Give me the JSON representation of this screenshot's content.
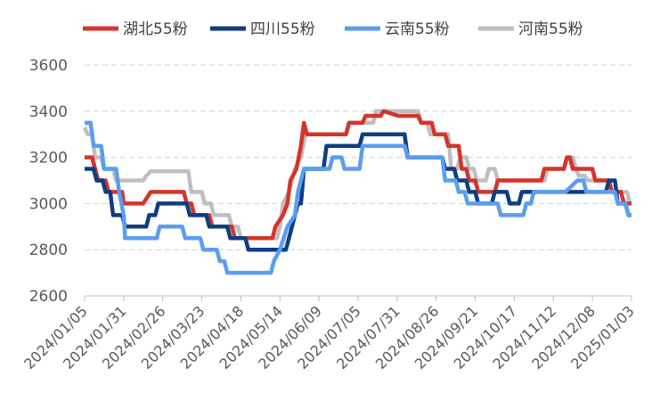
{
  "chart_data": {
    "type": "line",
    "title": "",
    "xlabel": "",
    "ylabel": "",
    "ylim": [
      2600,
      3600
    ],
    "yticks": [
      2600,
      2800,
      3000,
      3200,
      3400,
      3600
    ],
    "xlim": [
      "2024/01/05",
      "2025/01/03"
    ],
    "xticks": [
      "2024/01/05",
      "2024/01/31",
      "2024/02/26",
      "2024/03/23",
      "2024/04/18",
      "2024/05/14",
      "2024/06/09",
      "2024/07/05",
      "2024/07/31",
      "2024/08/26",
      "2024/09/21",
      "2024/10/17",
      "2024/11/12",
      "2024/12/08",
      "2025/01/03"
    ],
    "grid": true,
    "legend_position": "top",
    "series": [
      {
        "name": "湖北55粉",
        "color": "#d5342b",
        "points": [
          [
            "2024/01/05",
            3200
          ],
          [
            "2024/01/10",
            3200
          ],
          [
            "2024/01/12",
            3150
          ],
          [
            "2024/01/14",
            3100
          ],
          [
            "2024/01/19",
            3100
          ],
          [
            "2024/01/21",
            3050
          ],
          [
            "2024/01/30",
            3050
          ],
          [
            "2024/01/31",
            3000
          ],
          [
            "2024/02/13",
            3000
          ],
          [
            "2024/02/18",
            3050
          ],
          [
            "2024/03/11",
            3050
          ],
          [
            "2024/03/13",
            3000
          ],
          [
            "2024/03/16",
            3000
          ],
          [
            "2024/03/18",
            2950
          ],
          [
            "2024/03/28",
            2950
          ],
          [
            "2024/03/30",
            2900
          ],
          [
            "2024/04/12",
            2900
          ],
          [
            "2024/04/14",
            2850
          ],
          [
            "2024/05/09",
            2850
          ],
          [
            "2024/05/11",
            2900
          ],
          [
            "2024/05/16",
            2950
          ],
          [
            "2024/05/19",
            3000
          ],
          [
            "2024/05/21",
            3100
          ],
          [
            "2024/05/25",
            3150
          ],
          [
            "2024/05/28",
            3250
          ],
          [
            "2024/05/30",
            3350
          ],
          [
            "2024/06/01",
            3300
          ],
          [
            "2024/06/27",
            3300
          ],
          [
            "2024/06/29",
            3350
          ],
          [
            "2024/07/08",
            3350
          ],
          [
            "2024/07/10",
            3380
          ],
          [
            "2024/07/20",
            3380
          ],
          [
            "2024/07/22",
            3400
          ],
          [
            "2024/08/01",
            3380
          ],
          [
            "2024/08/14",
            3380
          ],
          [
            "2024/08/16",
            3350
          ],
          [
            "2024/08/23",
            3350
          ],
          [
            "2024/08/25",
            3300
          ],
          [
            "2024/09/01",
            3300
          ],
          [
            "2024/09/03",
            3250
          ],
          [
            "2024/09/10",
            3250
          ],
          [
            "2024/09/12",
            3150
          ],
          [
            "2024/09/15",
            3150
          ],
          [
            "2024/09/17",
            3100
          ],
          [
            "2024/09/21",
            3100
          ],
          [
            "2024/09/23",
            3050
          ],
          [
            "2024/10/04",
            3050
          ],
          [
            "2024/10/06",
            3100
          ],
          [
            "2024/11/04",
            3100
          ],
          [
            "2024/11/06",
            3150
          ],
          [
            "2024/11/19",
            3150
          ],
          [
            "2024/11/21",
            3200
          ],
          [
            "2024/11/23",
            3200
          ],
          [
            "2024/11/25",
            3150
          ],
          [
            "2024/12/03",
            3150
          ],
          [
            "2024/12/08",
            3150
          ],
          [
            "2024/12/10",
            3100
          ],
          [
            "2024/12/19",
            3100
          ],
          [
            "2024/12/21",
            3050
          ],
          [
            "2024/12/27",
            3050
          ],
          [
            "2024/12/29",
            3000
          ],
          [
            "2025/01/03",
            3000
          ]
        ]
      },
      {
        "name": "四川55粉",
        "color": "#0e3d82",
        "points": [
          [
            "2024/01/05",
            3150
          ],
          [
            "2024/01/11",
            3150
          ],
          [
            "2024/01/13",
            3100
          ],
          [
            "2024/01/17",
            3100
          ],
          [
            "2024/01/19",
            3050
          ],
          [
            "2024/01/22",
            3050
          ],
          [
            "2024/01/24",
            2950
          ],
          [
            "2024/01/30",
            2950
          ],
          [
            "2024/02/01",
            2900
          ],
          [
            "2024/02/15",
            2900
          ],
          [
            "2024/02/17",
            2950
          ],
          [
            "2024/02/21",
            2950
          ],
          [
            "2024/02/23",
            3000
          ],
          [
            "2024/03/13",
            3000
          ],
          [
            "2024/03/15",
            2950
          ],
          [
            "2024/03/26",
            2950
          ],
          [
            "2024/03/28",
            2900
          ],
          [
            "2024/04/09",
            2900
          ],
          [
            "2024/04/11",
            2850
          ],
          [
            "2024/04/21",
            2850
          ],
          [
            "2024/04/23",
            2800
          ],
          [
            "2024/05/18",
            2800
          ],
          [
            "2024/05/20",
            2850
          ],
          [
            "2024/05/22",
            2900
          ],
          [
            "2024/05/24",
            2950
          ],
          [
            "2024/05/26",
            3000
          ],
          [
            "2024/05/28",
            3000
          ],
          [
            "2024/05/30",
            3150
          ],
          [
            "2024/06/12",
            3150
          ],
          [
            "2024/06/14",
            3250
          ],
          [
            "2024/07/06",
            3250
          ],
          [
            "2024/07/08",
            3300
          ],
          [
            "2024/08/05",
            3300
          ],
          [
            "2024/08/07",
            3200
          ],
          [
            "2024/08/30",
            3200
          ],
          [
            "2024/09/01",
            3150
          ],
          [
            "2024/09/07",
            3150
          ],
          [
            "2024/09/09",
            3100
          ],
          [
            "2024/09/15",
            3100
          ],
          [
            "2024/09/17",
            3050
          ],
          [
            "2024/09/21",
            3050
          ],
          [
            "2024/09/23",
            3000
          ],
          [
            "2024/10/02",
            3000
          ],
          [
            "2024/10/04",
            3050
          ],
          [
            "2024/10/12",
            3050
          ],
          [
            "2024/10/14",
            3000
          ],
          [
            "2024/10/20",
            3000
          ],
          [
            "2024/10/22",
            3050
          ],
          [
            "2024/12/17",
            3050
          ],
          [
            "2024/12/19",
            3100
          ],
          [
            "2024/12/23",
            3100
          ],
          [
            "2024/12/25",
            3000
          ],
          [
            "2024/12/30",
            3000
          ],
          [
            "2025/01/01",
            2950
          ],
          [
            "2025/01/03",
            2950
          ]
        ]
      },
      {
        "name": "云南55粉",
        "color": "#5b9df0",
        "points": [
          [
            "2024/01/05",
            3350
          ],
          [
            "2024/01/09",
            3350
          ],
          [
            "2024/01/11",
            3250
          ],
          [
            "2024/01/16",
            3250
          ],
          [
            "2024/01/18",
            3150
          ],
          [
            "2024/01/26",
            3150
          ],
          [
            "2024/01/28",
            3050
          ],
          [
            "2024/01/31",
            2950
          ],
          [
            "2024/02/01",
            2850
          ],
          [
            "2024/02/22",
            2850
          ],
          [
            "2024/02/24",
            2900
          ],
          [
            "2024/03/10",
            2900
          ],
          [
            "2024/03/12",
            2850
          ],
          [
            "2024/03/22",
            2850
          ],
          [
            "2024/03/24",
            2800
          ],
          [
            "2024/04/02",
            2800
          ],
          [
            "2024/04/04",
            2750
          ],
          [
            "2024/04/07",
            2750
          ],
          [
            "2024/04/09",
            2700
          ],
          [
            "2024/05/08",
            2700
          ],
          [
            "2024/05/10",
            2750
          ],
          [
            "2024/05/14",
            2800
          ],
          [
            "2024/05/19",
            2900
          ],
          [
            "2024/05/24",
            2950
          ],
          [
            "2024/05/26",
            3050
          ],
          [
            "2024/05/30",
            3150
          ],
          [
            "2024/06/16",
            3150
          ],
          [
            "2024/06/18",
            3200
          ],
          [
            "2024/06/24",
            3200
          ],
          [
            "2024/06/26",
            3150
          ],
          [
            "2024/07/06",
            3150
          ],
          [
            "2024/07/08",
            3250
          ],
          [
            "2024/08/05",
            3250
          ],
          [
            "2024/08/07",
            3200
          ],
          [
            "2024/08/30",
            3200
          ],
          [
            "2024/09/01",
            3100
          ],
          [
            "2024/09/08",
            3100
          ],
          [
            "2024/09/10",
            3050
          ],
          [
            "2024/09/14",
            3050
          ],
          [
            "2024/09/16",
            3000
          ],
          [
            "2024/10/06",
            3000
          ],
          [
            "2024/10/08",
            2950
          ],
          [
            "2024/10/23",
            2950
          ],
          [
            "2024/10/25",
            3000
          ],
          [
            "2024/10/28",
            3000
          ],
          [
            "2024/10/30",
            3050
          ],
          [
            "2024/11/20",
            3050
          ],
          [
            "2024/11/28",
            3100
          ],
          [
            "2024/12/02",
            3100
          ],
          [
            "2024/12/04",
            3050
          ],
          [
            "2024/12/23",
            3050
          ],
          [
            "2024/12/25",
            3000
          ],
          [
            "2024/12/30",
            3000
          ],
          [
            "2025/01/01",
            2950
          ],
          [
            "2025/01/03",
            2950
          ]
        ]
      },
      {
        "name": "河南55粉",
        "color": "#bfbfbf",
        "points": [
          [
            "2024/01/05",
            3330
          ],
          [
            "2024/01/07",
            3300
          ],
          [
            "2024/01/10",
            3300
          ],
          [
            "2024/01/12",
            3200
          ],
          [
            "2024/01/16",
            3200
          ],
          [
            "2024/01/18",
            3150
          ],
          [
            "2024/01/24",
            3150
          ],
          [
            "2024/01/26",
            3100
          ],
          [
            "2024/02/13",
            3100
          ],
          [
            "2024/02/15",
            3120
          ],
          [
            "2024/02/18",
            3140
          ],
          [
            "2024/03/14",
            3140
          ],
          [
            "2024/03/16",
            3050
          ],
          [
            "2024/03/23",
            3050
          ],
          [
            "2024/03/25",
            3000
          ],
          [
            "2024/03/29",
            3000
          ],
          [
            "2024/03/31",
            2950
          ],
          [
            "2024/04/10",
            2950
          ],
          [
            "2024/04/12",
            2900
          ],
          [
            "2024/04/16",
            2900
          ],
          [
            "2024/04/18",
            2850
          ],
          [
            "2024/05/12",
            2850
          ],
          [
            "2024/05/14",
            2900
          ],
          [
            "2024/05/16",
            3000
          ],
          [
            "2024/05/20",
            3050
          ],
          [
            "2024/05/24",
            3150
          ],
          [
            "2024/05/28",
            3200
          ],
          [
            "2024/05/31",
            3300
          ],
          [
            "2024/06/27",
            3300
          ],
          [
            "2024/06/29",
            3350
          ],
          [
            "2024/07/15",
            3350
          ],
          [
            "2024/07/17",
            3400
          ],
          [
            "2024/08/14",
            3400
          ],
          [
            "2024/08/16",
            3350
          ],
          [
            "2024/08/20",
            3350
          ],
          [
            "2024/08/22",
            3300
          ],
          [
            "2024/09/03",
            3300
          ],
          [
            "2024/09/05",
            3150
          ],
          [
            "2024/09/09",
            3150
          ],
          [
            "2024/09/11",
            3200
          ],
          [
            "2024/09/15",
            3200
          ],
          [
            "2024/09/17",
            3150
          ],
          [
            "2024/09/20",
            3150
          ],
          [
            "2024/09/22",
            3100
          ],
          [
            "2024/09/28",
            3100
          ],
          [
            "2024/09/30",
            3150
          ],
          [
            "2024/10/04",
            3150
          ],
          [
            "2024/10/06",
            3100
          ],
          [
            "2024/11/06",
            3100
          ],
          [
            "2024/11/08",
            3150
          ],
          [
            "2024/11/19",
            3150
          ],
          [
            "2024/11/21",
            3200
          ],
          [
            "2024/11/25",
            3200
          ],
          [
            "2024/11/27",
            3150
          ],
          [
            "2024/11/29",
            3120
          ],
          [
            "2024/12/03",
            3120
          ],
          [
            "2024/12/05",
            3100
          ],
          [
            "2024/12/19",
            3100
          ],
          [
            "2024/12/21",
            3050
          ],
          [
            "2024/12/31",
            3050
          ],
          [
            "2025/01/02",
            3000
          ],
          [
            "2025/01/03",
            3000
          ]
        ]
      }
    ]
  }
}
